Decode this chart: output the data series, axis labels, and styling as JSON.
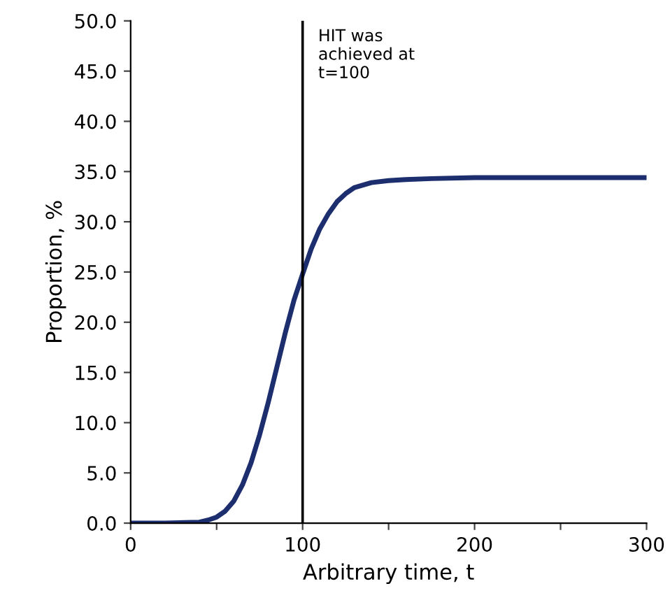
{
  "chart_data": {
    "type": "line",
    "xlabel": "Arbitrary time, t",
    "ylabel": "Proportion, %",
    "x": [
      0,
      20,
      40,
      45,
      50,
      55,
      60,
      65,
      70,
      75,
      80,
      85,
      90,
      95,
      100,
      105,
      110,
      115,
      120,
      125,
      130,
      140,
      150,
      160,
      175,
      200,
      250,
      300
    ],
    "series": [
      {
        "color": "#1c2e6e",
        "values": [
          0,
          0,
          0.1,
          0.3,
          0.6,
          1.2,
          2.2,
          3.8,
          6.0,
          8.8,
          12.0,
          15.5,
          19.0,
          22.2,
          24.8,
          27.3,
          29.3,
          30.8,
          32.0,
          32.8,
          33.4,
          33.9,
          34.1,
          34.2,
          34.3,
          34.4,
          34.4,
          34.4
        ]
      }
    ],
    "xlim": [
      0,
      300
    ],
    "ylim": [
      0,
      50
    ],
    "xticks": [
      0,
      {
        "value": 50,
        "label": null
      },
      100,
      {
        "value": 150,
        "label": null
      },
      200,
      {
        "value": 250,
        "label": null
      },
      300
    ],
    "yticks": [
      {
        "value": 0,
        "label": "0.0"
      },
      {
        "value": 5,
        "label": "5.0"
      },
      {
        "value": 10,
        "label": "10.0"
      },
      {
        "value": 15,
        "label": "15.0"
      },
      {
        "value": 20,
        "label": "20.0"
      },
      {
        "value": 25,
        "label": "25.0"
      },
      {
        "value": 30,
        "label": "30.0"
      },
      {
        "value": 35,
        "label": "35.0"
      },
      {
        "value": 40,
        "label": "40.0"
      },
      {
        "value": 45,
        "label": "45.0"
      },
      {
        "value": 50,
        "label": "50.0"
      }
    ],
    "ref_lines": [
      {
        "axis": "x",
        "value": 100,
        "label": "HIT was\nachieved at\nt=100",
        "color": "#000000"
      }
    ],
    "grid": false,
    "legend": false,
    "marker": "none",
    "line_style": "solid"
  }
}
